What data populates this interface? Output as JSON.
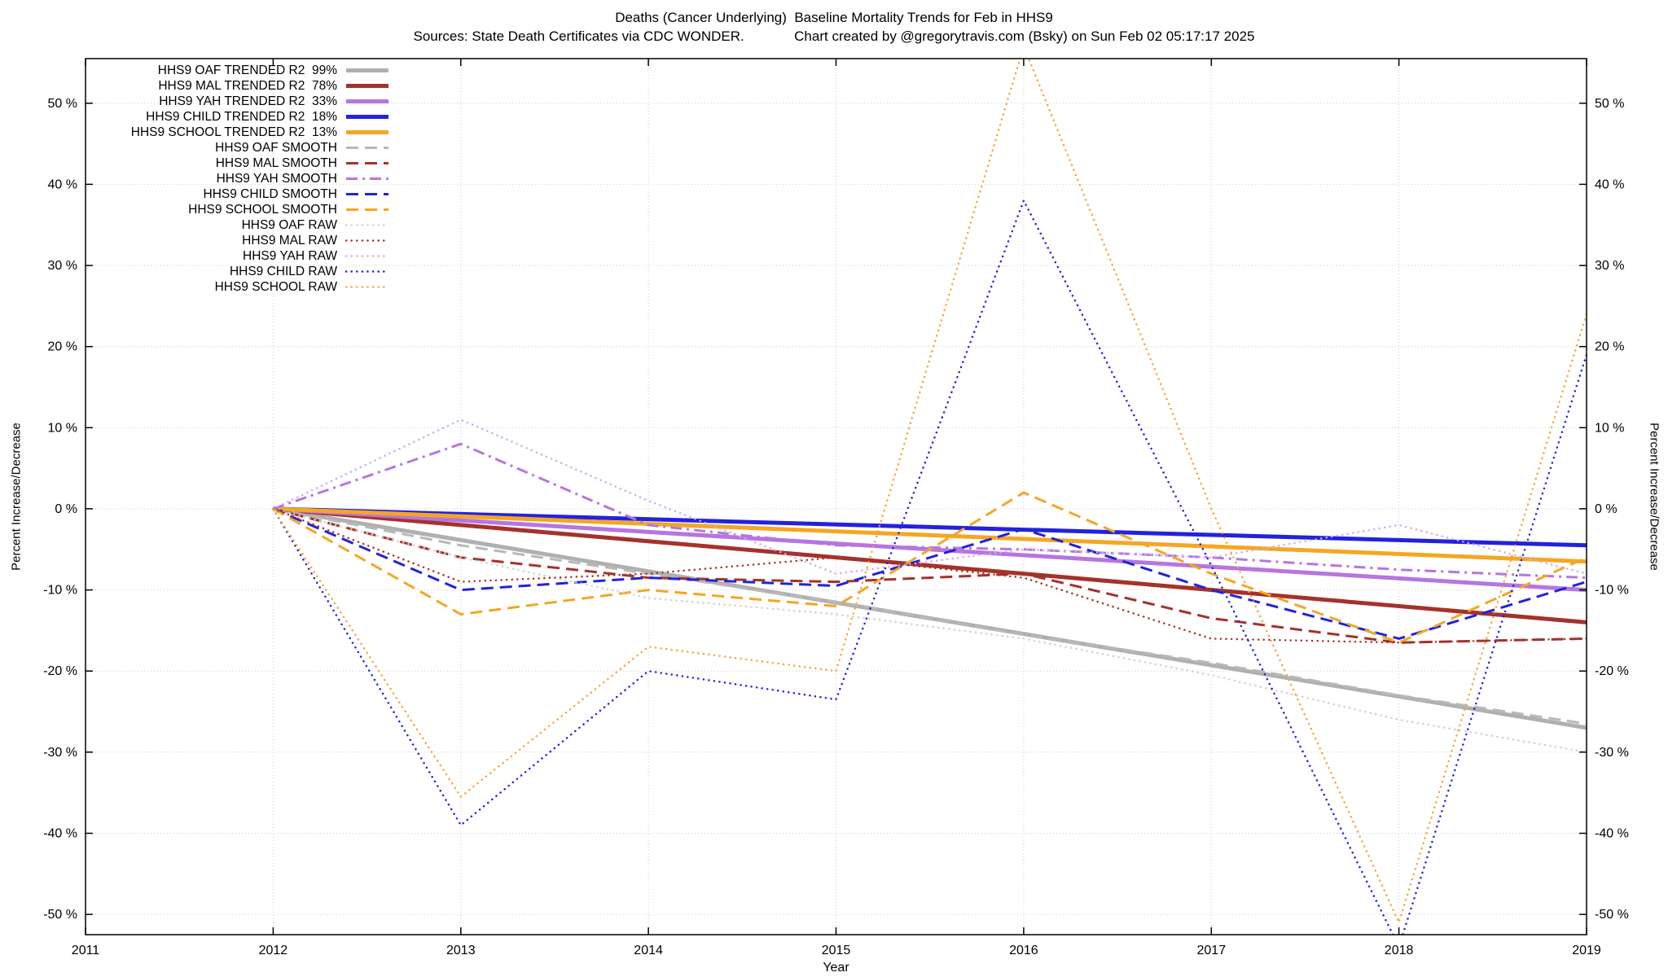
{
  "title": {
    "line1": "Deaths (Cancer Underlying)  Baseline Mortality Trends for Feb in HHS9",
    "line2": "Sources: State Death Certificates via CDC WONDER.             Chart created by @gregorytravis.com (Bsky) on Sun Feb 02 05:17:17 2025"
  },
  "chart_data": {
    "type": "line",
    "xlabel": "Year",
    "ylabel_left": "Percent Increase/Decrease",
    "ylabel_right": "Percent Increase/Decrease",
    "xlim": [
      2011,
      2019
    ],
    "ylim": [
      -52.5,
      55.5
    ],
    "grid": true,
    "legend_position": "top-left",
    "colors": {
      "grid": "#cccccc",
      "border": "#000000",
      "text": "#000000"
    },
    "xticks": [
      2011,
      2012,
      2013,
      2014,
      2015,
      2016,
      2017,
      2018,
      2019
    ],
    "xtick_labels": [
      "2011",
      "2012",
      "2013",
      "2014",
      "2015",
      "2016",
      "2017",
      "2018",
      "2019"
    ],
    "ytick_values": [
      50,
      40,
      30,
      20,
      10,
      0,
      -10,
      -20,
      -30,
      -40,
      -50
    ],
    "ytick_labels": [
      "50 %",
      "40 %",
      "30 %",
      "20 %",
      "10 %",
      "0 %",
      "-10 %",
      "-20 %",
      "-30 %",
      "-40 %",
      "-50 %"
    ],
    "series": [
      {
        "id": "oaf-trended",
        "label": "HHS9 OAF TRENDED R2  99%",
        "group": "trended",
        "color": "#b0b0b0",
        "style": "solid",
        "width": 5,
        "x": [
          2012,
          2019
        ],
        "y": [
          0,
          -27
        ]
      },
      {
        "id": "mal-trended",
        "label": "HHS9 MAL TRENDED R2  78%",
        "group": "trended",
        "color": "#a5322a",
        "style": "solid",
        "width": 5,
        "x": [
          2012,
          2019
        ],
        "y": [
          0,
          -14
        ]
      },
      {
        "id": "yah-trended",
        "label": "HHS9 YAH TRENDED R2  33%",
        "group": "trended",
        "color": "#b675e0",
        "style": "solid",
        "width": 5,
        "x": [
          2012,
          2019
        ],
        "y": [
          0,
          -10
        ]
      },
      {
        "id": "child-trended",
        "label": "HHS9 CHILD TRENDED R2  18%",
        "group": "trended",
        "color": "#2222dd",
        "style": "solid",
        "width": 5,
        "x": [
          2012,
          2019
        ],
        "y": [
          0,
          -4.5
        ]
      },
      {
        "id": "school-trended",
        "label": "HHS9 SCHOOL TRENDED R2  13%",
        "group": "trended",
        "color": "#f5a623",
        "style": "solid",
        "width": 5,
        "x": [
          2012,
          2019
        ],
        "y": [
          0,
          -6.5
        ]
      },
      {
        "id": "oaf-smooth",
        "label": "HHS9 OAF SMOOTH",
        "group": "smooth",
        "color": "#b8b8b8",
        "style": "dashed",
        "width": 3,
        "x": [
          2012,
          2013,
          2014,
          2015,
          2016,
          2017,
          2018,
          2019
        ],
        "y": [
          0,
          -4.5,
          -8,
          -11.5,
          -15.5,
          -19,
          -23,
          -26.5
        ]
      },
      {
        "id": "mal-smooth",
        "label": "HHS9 MAL SMOOTH",
        "group": "smooth",
        "color": "#a5322a",
        "style": "dashed",
        "width": 3,
        "x": [
          2012,
          2013,
          2014,
          2015,
          2016,
          2017,
          2018,
          2019
        ],
        "y": [
          0,
          -6,
          -8.5,
          -9,
          -8,
          -13.5,
          -16.5,
          -16
        ]
      },
      {
        "id": "yah-smooth",
        "label": "HHS9 YAH SMOOTH",
        "group": "smooth",
        "color": "#b675e0",
        "style": "dashdot",
        "width": 3,
        "x": [
          2012,
          2013,
          2014,
          2015,
          2016,
          2017,
          2018,
          2019
        ],
        "y": [
          0,
          8,
          -2,
          -4.5,
          -5,
          -6,
          -7.5,
          -8.5
        ]
      },
      {
        "id": "child-smooth",
        "label": "HHS9 CHILD SMOOTH",
        "group": "smooth",
        "color": "#2222dd",
        "style": "dashed",
        "width": 3,
        "x": [
          2012,
          2013,
          2014,
          2015,
          2016,
          2017,
          2018,
          2019
        ],
        "y": [
          0,
          -10,
          -8.5,
          -9.5,
          -2.5,
          -10,
          -16,
          -9
        ]
      },
      {
        "id": "school-smooth",
        "label": "HHS9 SCHOOL SMOOTH",
        "group": "smooth",
        "color": "#f5a623",
        "style": "dashed",
        "width": 3,
        "x": [
          2012,
          2013,
          2014,
          2015,
          2016,
          2017,
          2018,
          2019
        ],
        "y": [
          0,
          -13,
          -10,
          -12,
          2,
          -8,
          -16.5,
          -6
        ]
      },
      {
        "id": "oaf-raw",
        "label": "HHS9 OAF RAW",
        "group": "raw",
        "color": "#cfcfcf",
        "style": "dotted",
        "width": 2.5,
        "x": [
          2012,
          2013,
          2014,
          2015,
          2016,
          2017,
          2018,
          2019
        ],
        "y": [
          0,
          -6,
          -11,
          -13,
          -16,
          -20.5,
          -26,
          -30
        ]
      },
      {
        "id": "mal-raw",
        "label": "HHS9 MAL RAW",
        "group": "raw",
        "color": "#a5322a",
        "style": "dotted",
        "width": 2.5,
        "x": [
          2012,
          2013,
          2014,
          2015,
          2016,
          2017,
          2018,
          2019
        ],
        "y": [
          0,
          -9,
          -8,
          -6,
          -8.5,
          -16,
          -16.5,
          -16
        ]
      },
      {
        "id": "yah-raw",
        "label": "HHS9 YAH RAW",
        "group": "raw",
        "color": "#d2a7ef",
        "style": "dotted",
        "width": 2.5,
        "x": [
          2012,
          2013,
          2014,
          2015,
          2016,
          2017,
          2018,
          2019
        ],
        "y": [
          0,
          11,
          1,
          -8,
          -5,
          -6,
          -2,
          -8
        ]
      },
      {
        "id": "child-raw",
        "label": "HHS9 CHILD RAW",
        "group": "raw",
        "color": "#2222dd",
        "style": "dotted",
        "width": 2.5,
        "x": [
          2012,
          2013,
          2014,
          2015,
          2016,
          2017,
          2018,
          2019
        ],
        "y": [
          0,
          -39,
          -20,
          -23.5,
          38,
          -7,
          -54,
          19
        ]
      },
      {
        "id": "school-raw",
        "label": "HHS9 SCHOOL RAW",
        "group": "raw",
        "color": "#f4a63a",
        "style": "dotted",
        "width": 2.5,
        "x": [
          2012,
          2013,
          2014,
          2015,
          2016,
          2017,
          2018,
          2019
        ],
        "y": [
          0,
          -35.5,
          -17,
          -20,
          57,
          0,
          -51,
          24
        ]
      }
    ]
  }
}
